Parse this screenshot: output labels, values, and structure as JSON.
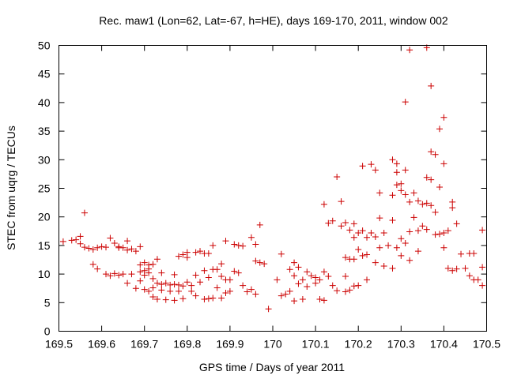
{
  "chart_data": {
    "type": "scatter",
    "title": "Rec. maw1 (Lon=62, Lat=-67, h=HE), days 169-170, 2011, window 002",
    "xlabel": "GPS time / Days of year 2011",
    "ylabel": "STEC from uqrg / TECUs",
    "xlim": [
      169.5,
      170.5
    ],
    "ylim": [
      0,
      50
    ],
    "xticks": [
      "169.5",
      "169.6",
      "169.7",
      "169.8",
      "169.9",
      "170",
      "170.1",
      "170.2",
      "170.3",
      "170.4",
      "170.5"
    ],
    "yticks": [
      "0",
      "5",
      "10",
      "15",
      "20",
      "25",
      "30",
      "35",
      "40",
      "45",
      "50"
    ],
    "grid": false,
    "marker": "+",
    "color": "#cc0000",
    "series": [
      {
        "points": [
          [
            169.51,
            15.7
          ],
          [
            169.53,
            15.9
          ],
          [
            169.54,
            16.0
          ],
          [
            169.55,
            16.6
          ],
          [
            169.55,
            15.3
          ],
          [
            169.56,
            20.7
          ],
          [
            169.56,
            14.7
          ],
          [
            169.57,
            14.5
          ],
          [
            169.58,
            14.3
          ],
          [
            169.58,
            11.7
          ],
          [
            169.59,
            14.6
          ],
          [
            169.59,
            10.9
          ],
          [
            169.6,
            14.8
          ],
          [
            169.61,
            14.7
          ],
          [
            169.61,
            10.0
          ],
          [
            169.62,
            16.3
          ],
          [
            169.62,
            9.7
          ],
          [
            169.63,
            15.4
          ],
          [
            169.63,
            10.1
          ],
          [
            169.64,
            14.6
          ],
          [
            169.64,
            14.8
          ],
          [
            169.64,
            9.8
          ],
          [
            169.65,
            14.6
          ],
          [
            169.65,
            10.0
          ],
          [
            169.66,
            15.8
          ],
          [
            169.66,
            14.2
          ],
          [
            169.66,
            8.4
          ],
          [
            169.67,
            14.4
          ],
          [
            169.67,
            10.0
          ],
          [
            169.68,
            14.0
          ],
          [
            169.68,
            7.5
          ],
          [
            169.69,
            14.8
          ],
          [
            169.69,
            11.6
          ],
          [
            169.69,
            10.4
          ],
          [
            169.69,
            8.8
          ],
          [
            169.7,
            12.0
          ],
          [
            169.7,
            10.6
          ],
          [
            169.7,
            9.8
          ],
          [
            169.7,
            7.3
          ],
          [
            169.71,
            11.6
          ],
          [
            169.71,
            10.9
          ],
          [
            169.71,
            10.2
          ],
          [
            169.71,
            7.0
          ],
          [
            169.72,
            11.7
          ],
          [
            169.72,
            9.2
          ],
          [
            169.72,
            7.6
          ],
          [
            169.72,
            6.0
          ],
          [
            169.73,
            12.6
          ],
          [
            169.73,
            8.4
          ],
          [
            169.73,
            5.6
          ],
          [
            169.74,
            10.2
          ],
          [
            169.74,
            8.2
          ],
          [
            169.74,
            7.2
          ],
          [
            169.75,
            8.4
          ],
          [
            169.75,
            5.5
          ],
          [
            169.76,
            8.1
          ],
          [
            169.76,
            7.0
          ],
          [
            169.77,
            9.9
          ],
          [
            169.77,
            8.2
          ],
          [
            169.77,
            5.4
          ],
          [
            169.78,
            13.1
          ],
          [
            169.78,
            8.1
          ],
          [
            169.78,
            7.0
          ],
          [
            169.79,
            13.4
          ],
          [
            169.79,
            7.9
          ],
          [
            169.79,
            5.7
          ],
          [
            169.8,
            13.8
          ],
          [
            169.8,
            12.9
          ],
          [
            169.8,
            8.6
          ],
          [
            169.81,
            8.0
          ],
          [
            169.81,
            7.0
          ],
          [
            169.82,
            13.8
          ],
          [
            169.82,
            9.8
          ],
          [
            169.82,
            6.2
          ],
          [
            169.83,
            14.0
          ],
          [
            169.83,
            8.6
          ],
          [
            169.84,
            13.6
          ],
          [
            169.84,
            10.6
          ],
          [
            169.84,
            5.6
          ],
          [
            169.85,
            13.6
          ],
          [
            169.85,
            9.4
          ],
          [
            169.85,
            5.7
          ],
          [
            169.86,
            15.0
          ],
          [
            169.86,
            10.8
          ],
          [
            169.86,
            5.8
          ],
          [
            169.87,
            10.8
          ],
          [
            169.87,
            7.6
          ],
          [
            169.88,
            11.8
          ],
          [
            169.88,
            9.6
          ],
          [
            169.88,
            5.8
          ],
          [
            169.89,
            15.8
          ],
          [
            169.89,
            9.0
          ],
          [
            169.89,
            6.7
          ],
          [
            169.9,
            9.0
          ],
          [
            169.9,
            7.0
          ],
          [
            169.91,
            15.2
          ],
          [
            169.91,
            10.5
          ],
          [
            169.92,
            15.0
          ],
          [
            169.92,
            10.2
          ],
          [
            169.93,
            14.9
          ],
          [
            169.93,
            8.0
          ],
          [
            169.94,
            6.9
          ],
          [
            169.95,
            16.4
          ],
          [
            169.95,
            7.3
          ],
          [
            169.96,
            15.2
          ],
          [
            169.96,
            12.3
          ],
          [
            169.96,
            6.5
          ],
          [
            169.97,
            18.6
          ],
          [
            169.97,
            12.0
          ],
          [
            169.98,
            11.8
          ],
          [
            169.99,
            3.9
          ],
          [
            170.01,
            9.0
          ],
          [
            170.02,
            13.5
          ],
          [
            170.02,
            6.2
          ],
          [
            170.03,
            6.5
          ],
          [
            170.04,
            10.8
          ],
          [
            170.04,
            7.0
          ],
          [
            170.05,
            12.0
          ],
          [
            170.05,
            9.7
          ],
          [
            170.05,
            5.3
          ],
          [
            170.06,
            11.2
          ],
          [
            170.06,
            8.3
          ],
          [
            170.07,
            9.0
          ],
          [
            170.07,
            5.6
          ],
          [
            170.08,
            10.4
          ],
          [
            170.08,
            7.8
          ],
          [
            170.09,
            9.7
          ],
          [
            170.1,
            9.4
          ],
          [
            170.1,
            8.4
          ],
          [
            170.11,
            9.0
          ],
          [
            170.11,
            5.6
          ],
          [
            170.12,
            22.2
          ],
          [
            170.12,
            10.4
          ],
          [
            170.12,
            5.4
          ],
          [
            170.13,
            18.9
          ],
          [
            170.13,
            9.6
          ],
          [
            170.14,
            19.3
          ],
          [
            170.14,
            8.0
          ],
          [
            170.15,
            27.0
          ],
          [
            170.15,
            7.1
          ],
          [
            170.16,
            22.7
          ],
          [
            170.16,
            18.4
          ],
          [
            170.17,
            19.0
          ],
          [
            170.17,
            12.9
          ],
          [
            170.17,
            9.6
          ],
          [
            170.17,
            6.9
          ],
          [
            170.18,
            17.7
          ],
          [
            170.18,
            12.6
          ],
          [
            170.18,
            7.2
          ],
          [
            170.19,
            18.8
          ],
          [
            170.19,
            16.4
          ],
          [
            170.19,
            12.6
          ],
          [
            170.19,
            7.9
          ],
          [
            170.2,
            17.2
          ],
          [
            170.2,
            14.3
          ],
          [
            170.2,
            8.0
          ],
          [
            170.21,
            28.9
          ],
          [
            170.21,
            17.6
          ],
          [
            170.21,
            13.2
          ],
          [
            170.22,
            16.4
          ],
          [
            170.22,
            13.4
          ],
          [
            170.22,
            9.0
          ],
          [
            170.23,
            29.2
          ],
          [
            170.23,
            17.2
          ],
          [
            170.24,
            28.2
          ],
          [
            170.24,
            16.5
          ],
          [
            170.24,
            12.0
          ],
          [
            170.25,
            24.2
          ],
          [
            170.25,
            19.8
          ],
          [
            170.25,
            14.6
          ],
          [
            170.26,
            17.2
          ],
          [
            170.26,
            11.4
          ],
          [
            170.27,
            15.0
          ],
          [
            170.28,
            30.0
          ],
          [
            170.28,
            23.8
          ],
          [
            170.28,
            19.4
          ],
          [
            170.28,
            11.0
          ],
          [
            170.29,
            29.3
          ],
          [
            170.29,
            27.8
          ],
          [
            170.29,
            25.6
          ],
          [
            170.29,
            14.6
          ],
          [
            170.3,
            25.8
          ],
          [
            170.3,
            24.6
          ],
          [
            170.3,
            16.2
          ],
          [
            170.3,
            13.2
          ],
          [
            170.31,
            40.1
          ],
          [
            170.31,
            28.2
          ],
          [
            170.31,
            23.9
          ],
          [
            170.31,
            15.4
          ],
          [
            170.32,
            49.2
          ],
          [
            170.32,
            22.6
          ],
          [
            170.32,
            17.4
          ],
          [
            170.32,
            12.4
          ],
          [
            170.33,
            24.2
          ],
          [
            170.33,
            19.9
          ],
          [
            170.34,
            22.8
          ],
          [
            170.34,
            17.6
          ],
          [
            170.34,
            14.0
          ],
          [
            170.35,
            22.2
          ],
          [
            170.35,
            18.4
          ],
          [
            170.36,
            49.6
          ],
          [
            170.36,
            26.9
          ],
          [
            170.36,
            22.4
          ],
          [
            170.36,
            17.8
          ],
          [
            170.37,
            42.9
          ],
          [
            170.37,
            31.4
          ],
          [
            170.37,
            26.5
          ],
          [
            170.37,
            22.0
          ],
          [
            170.38,
            30.9
          ],
          [
            170.38,
            20.8
          ],
          [
            170.38,
            16.9
          ],
          [
            170.39,
            35.4
          ],
          [
            170.39,
            25.2
          ],
          [
            170.39,
            17.0
          ],
          [
            170.4,
            37.4
          ],
          [
            170.4,
            29.3
          ],
          [
            170.4,
            17.2
          ],
          [
            170.4,
            14.6
          ],
          [
            170.41,
            17.6
          ],
          [
            170.41,
            11.0
          ],
          [
            170.42,
            22.6
          ],
          [
            170.42,
            21.6
          ],
          [
            170.42,
            10.6
          ],
          [
            170.43,
            18.8
          ],
          [
            170.43,
            10.9
          ],
          [
            170.44,
            13.5
          ],
          [
            170.45,
            11.0
          ],
          [
            170.46,
            13.6
          ],
          [
            170.46,
            9.7
          ],
          [
            170.47,
            13.6
          ],
          [
            170.47,
            9.0
          ],
          [
            170.48,
            9.0
          ],
          [
            170.49,
            17.7
          ],
          [
            170.49,
            11.2
          ],
          [
            170.49,
            8.0
          ]
        ]
      }
    ]
  }
}
